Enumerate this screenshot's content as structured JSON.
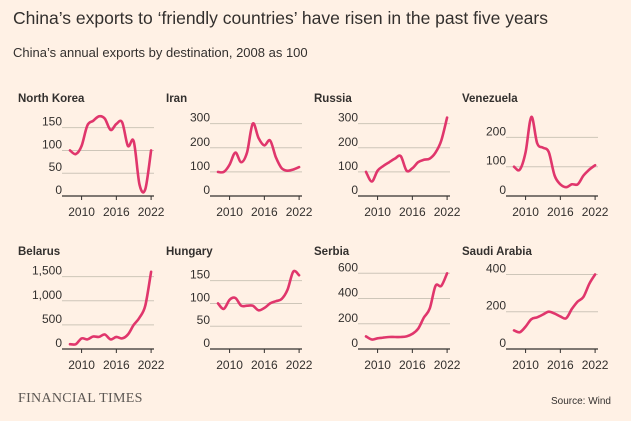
{
  "header": {
    "title": "China’s exports to ‘friendly countries’ have risen in the past five years",
    "subtitle": "China’s annual exports by destination, 2008 as 100"
  },
  "footer": {
    "brand": "FINANCIAL TIMES",
    "source": "Source: Wind"
  },
  "colors": {
    "background": "#fff1e5",
    "line": "#e0366c",
    "grid": "#cec6b9",
    "text": "#33302e"
  },
  "chart_data": [
    {
      "type": "line",
      "title": "North Korea",
      "x": [
        2008,
        2009,
        2010,
        2011,
        2012,
        2013,
        2014,
        2015,
        2016,
        2017,
        2018,
        2019,
        2020,
        2021,
        2022
      ],
      "values": [
        100,
        92,
        110,
        155,
        165,
        175,
        170,
        145,
        158,
        162,
        110,
        120,
        25,
        15,
        100
      ],
      "ylim": [
        0,
        180
      ],
      "yticks": [
        0,
        50,
        100,
        150
      ],
      "ytick_labels": [
        "0",
        "50",
        "100",
        "150"
      ],
      "xticks": [
        2010,
        2016,
        2022
      ],
      "xlim": [
        2008,
        2022.5
      ]
    },
    {
      "type": "line",
      "title": "Iran",
      "x": [
        2008,
        2009,
        2010,
        2011,
        2012,
        2013,
        2014,
        2015,
        2016,
        2017,
        2018,
        2019,
        2020,
        2021,
        2022
      ],
      "values": [
        100,
        100,
        130,
        180,
        140,
        180,
        300,
        240,
        210,
        230,
        160,
        115,
        105,
        110,
        120
      ],
      "ylim": [
        0,
        340
      ],
      "yticks": [
        0,
        100,
        200,
        300
      ],
      "ytick_labels": [
        "0",
        "100",
        "200",
        "300"
      ],
      "xticks": [
        2010,
        2016,
        2022
      ],
      "xlim": [
        2008,
        2022.5
      ]
    },
    {
      "type": "line",
      "title": "Russia",
      "x": [
        2008,
        2009,
        2010,
        2011,
        2012,
        2013,
        2014,
        2015,
        2016,
        2017,
        2018,
        2019,
        2020,
        2021,
        2022
      ],
      "values": [
        100,
        60,
        105,
        125,
        140,
        155,
        165,
        105,
        115,
        140,
        150,
        155,
        180,
        230,
        325
      ],
      "ylim": [
        0,
        340
      ],
      "yticks": [
        0,
        100,
        200,
        300
      ],
      "ytick_labels": [
        "0",
        "100",
        "200",
        "300"
      ],
      "xticks": [
        2010,
        2016,
        2022
      ],
      "xlim": [
        2008,
        2022.5
      ]
    },
    {
      "type": "line",
      "title": "Venezuela",
      "x": [
        2008,
        2009,
        2010,
        2011,
        2012,
        2013,
        2014,
        2015,
        2016,
        2017,
        2018,
        2019,
        2020,
        2021,
        2022
      ],
      "values": [
        100,
        90,
        150,
        270,
        180,
        165,
        150,
        70,
        40,
        30,
        40,
        40,
        70,
        90,
        105
      ],
      "ylim": [
        0,
        280
      ],
      "yticks": [
        0,
        100,
        200
      ],
      "ytick_labels": [
        "0",
        "100",
        "200"
      ],
      "xticks": [
        2010,
        2016,
        2022
      ],
      "xlim": [
        2008,
        2022.5
      ]
    },
    {
      "type": "line",
      "title": "Belarus",
      "x": [
        2008,
        2009,
        2010,
        2011,
        2012,
        2013,
        2014,
        2015,
        2016,
        2017,
        2018,
        2019,
        2020,
        2021,
        2022
      ],
      "values": [
        100,
        100,
        220,
        200,
        260,
        250,
        300,
        200,
        250,
        220,
        300,
        500,
        650,
        900,
        1600
      ],
      "ylim": [
        0,
        1700
      ],
      "yticks": [
        0,
        500,
        1000,
        1500
      ],
      "ytick_labels": [
        "0",
        "500",
        "1,000",
        "1,500"
      ],
      "xticks": [
        2010,
        2016,
        2022
      ],
      "xlim": [
        2008,
        2022.5
      ]
    },
    {
      "type": "line",
      "title": "Hungary",
      "x": [
        2008,
        2009,
        2010,
        2011,
        2012,
        2013,
        2014,
        2015,
        2016,
        2017,
        2018,
        2019,
        2020,
        2021,
        2022
      ],
      "values": [
        100,
        88,
        108,
        112,
        95,
        95,
        95,
        85,
        90,
        100,
        105,
        110,
        130,
        170,
        162
      ],
      "ylim": [
        0,
        180
      ],
      "yticks": [
        0,
        50,
        100,
        150
      ],
      "ytick_labels": [
        "0",
        "50",
        "100",
        "150"
      ],
      "xticks": [
        2010,
        2016,
        2022
      ],
      "xlim": [
        2008,
        2022.5
      ]
    },
    {
      "type": "line",
      "title": "Serbia",
      "x": [
        2008,
        2009,
        2010,
        2011,
        2012,
        2013,
        2014,
        2015,
        2016,
        2017,
        2018,
        2019,
        2020,
        2021,
        2022
      ],
      "values": [
        100,
        75,
        85,
        90,
        95,
        95,
        95,
        100,
        120,
        160,
        250,
        320,
        500,
        500,
        600
      ],
      "ylim": [
        0,
        650
      ],
      "yticks": [
        0,
        200,
        400,
        600
      ],
      "ytick_labels": [
        "0",
        "200",
        "400",
        "600"
      ],
      "xticks": [
        2010,
        2016,
        2022
      ],
      "xlim": [
        2008,
        2022.5
      ]
    },
    {
      "type": "line",
      "title": "Saudi Arabia",
      "x": [
        2008,
        2009,
        2010,
        2011,
        2012,
        2013,
        2014,
        2015,
        2016,
        2017,
        2018,
        2019,
        2020,
        2021,
        2022
      ],
      "values": [
        100,
        90,
        120,
        160,
        170,
        185,
        200,
        190,
        175,
        165,
        215,
        255,
        280,
        350,
        400
      ],
      "ylim": [
        0,
        440
      ],
      "yticks": [
        0,
        200,
        400
      ],
      "ytick_labels": [
        "0",
        "200",
        "400"
      ],
      "xticks": [
        2010,
        2016,
        2022
      ],
      "xlim": [
        2008,
        2022.5
      ]
    }
  ]
}
